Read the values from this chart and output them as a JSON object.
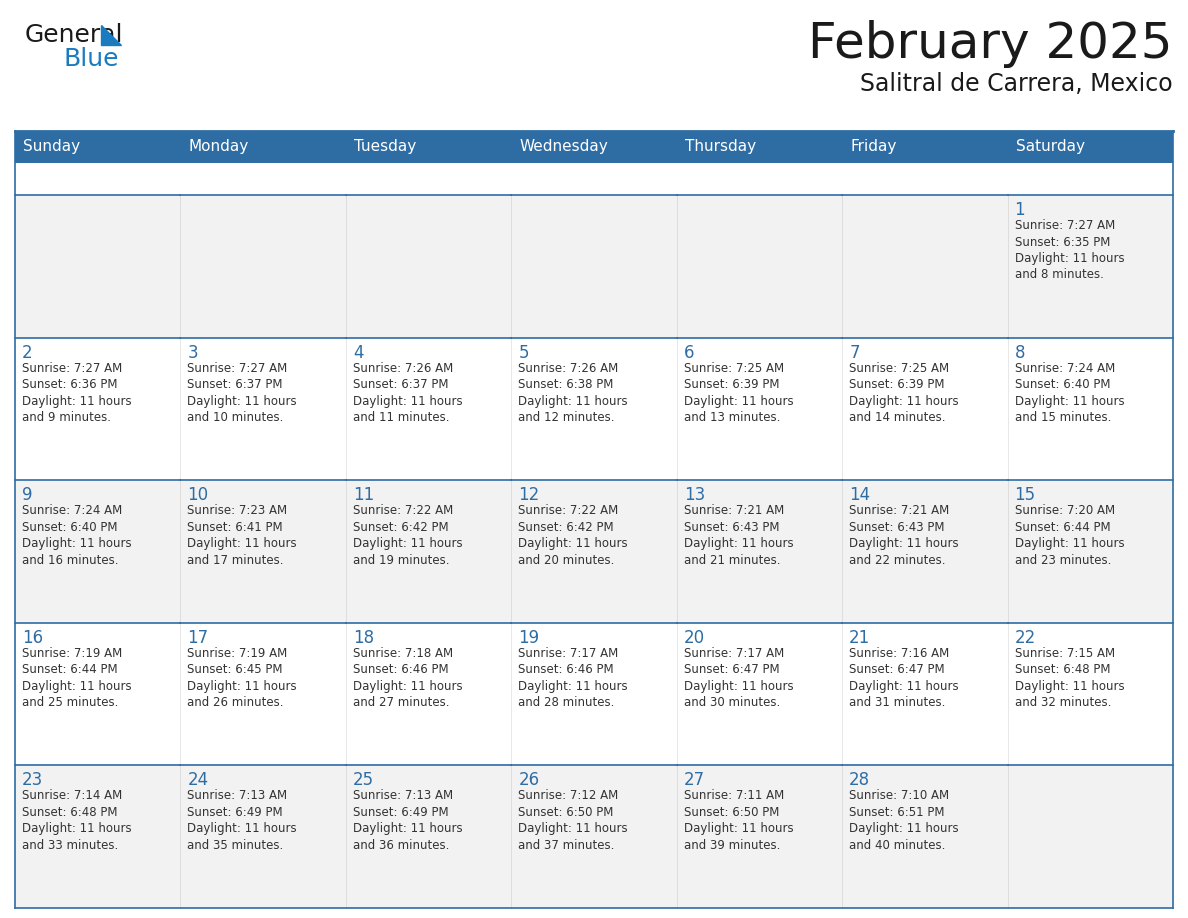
{
  "title": "February 2025",
  "subtitle": "Salitral de Carrera, Mexico",
  "header_bg": "#2e6da4",
  "header_text": "#ffffff",
  "cell_bg": "#ffffff",
  "cell_bg_alt": "#f2f2f2",
  "day_headers": [
    "Sunday",
    "Monday",
    "Tuesday",
    "Wednesday",
    "Thursday",
    "Friday",
    "Saturday"
  ],
  "title_color": "#1a1a1a",
  "subtitle_color": "#1a1a1a",
  "day_number_color": "#2e6da4",
  "info_color": "#333333",
  "grid_color": "#2e6da4",
  "logo_text_color": "#1a1a1a",
  "logo_blue_color": "#1a7bbf",
  "weeks": [
    [
      {
        "day": null,
        "info": ""
      },
      {
        "day": null,
        "info": ""
      },
      {
        "day": null,
        "info": ""
      },
      {
        "day": null,
        "info": ""
      },
      {
        "day": null,
        "info": ""
      },
      {
        "day": null,
        "info": ""
      },
      {
        "day": 1,
        "info": "Sunrise: 7:27 AM\nSunset: 6:35 PM\nDaylight: 11 hours\nand 8 minutes."
      }
    ],
    [
      {
        "day": 2,
        "info": "Sunrise: 7:27 AM\nSunset: 6:36 PM\nDaylight: 11 hours\nand 9 minutes."
      },
      {
        "day": 3,
        "info": "Sunrise: 7:27 AM\nSunset: 6:37 PM\nDaylight: 11 hours\nand 10 minutes."
      },
      {
        "day": 4,
        "info": "Sunrise: 7:26 AM\nSunset: 6:37 PM\nDaylight: 11 hours\nand 11 minutes."
      },
      {
        "day": 5,
        "info": "Sunrise: 7:26 AM\nSunset: 6:38 PM\nDaylight: 11 hours\nand 12 minutes."
      },
      {
        "day": 6,
        "info": "Sunrise: 7:25 AM\nSunset: 6:39 PM\nDaylight: 11 hours\nand 13 minutes."
      },
      {
        "day": 7,
        "info": "Sunrise: 7:25 AM\nSunset: 6:39 PM\nDaylight: 11 hours\nand 14 minutes."
      },
      {
        "day": 8,
        "info": "Sunrise: 7:24 AM\nSunset: 6:40 PM\nDaylight: 11 hours\nand 15 minutes."
      }
    ],
    [
      {
        "day": 9,
        "info": "Sunrise: 7:24 AM\nSunset: 6:40 PM\nDaylight: 11 hours\nand 16 minutes."
      },
      {
        "day": 10,
        "info": "Sunrise: 7:23 AM\nSunset: 6:41 PM\nDaylight: 11 hours\nand 17 minutes."
      },
      {
        "day": 11,
        "info": "Sunrise: 7:22 AM\nSunset: 6:42 PM\nDaylight: 11 hours\nand 19 minutes."
      },
      {
        "day": 12,
        "info": "Sunrise: 7:22 AM\nSunset: 6:42 PM\nDaylight: 11 hours\nand 20 minutes."
      },
      {
        "day": 13,
        "info": "Sunrise: 7:21 AM\nSunset: 6:43 PM\nDaylight: 11 hours\nand 21 minutes."
      },
      {
        "day": 14,
        "info": "Sunrise: 7:21 AM\nSunset: 6:43 PM\nDaylight: 11 hours\nand 22 minutes."
      },
      {
        "day": 15,
        "info": "Sunrise: 7:20 AM\nSunset: 6:44 PM\nDaylight: 11 hours\nand 23 minutes."
      }
    ],
    [
      {
        "day": 16,
        "info": "Sunrise: 7:19 AM\nSunset: 6:44 PM\nDaylight: 11 hours\nand 25 minutes."
      },
      {
        "day": 17,
        "info": "Sunrise: 7:19 AM\nSunset: 6:45 PM\nDaylight: 11 hours\nand 26 minutes."
      },
      {
        "day": 18,
        "info": "Sunrise: 7:18 AM\nSunset: 6:46 PM\nDaylight: 11 hours\nand 27 minutes."
      },
      {
        "day": 19,
        "info": "Sunrise: 7:17 AM\nSunset: 6:46 PM\nDaylight: 11 hours\nand 28 minutes."
      },
      {
        "day": 20,
        "info": "Sunrise: 7:17 AM\nSunset: 6:47 PM\nDaylight: 11 hours\nand 30 minutes."
      },
      {
        "day": 21,
        "info": "Sunrise: 7:16 AM\nSunset: 6:47 PM\nDaylight: 11 hours\nand 31 minutes."
      },
      {
        "day": 22,
        "info": "Sunrise: 7:15 AM\nSunset: 6:48 PM\nDaylight: 11 hours\nand 32 minutes."
      }
    ],
    [
      {
        "day": 23,
        "info": "Sunrise: 7:14 AM\nSunset: 6:48 PM\nDaylight: 11 hours\nand 33 minutes."
      },
      {
        "day": 24,
        "info": "Sunrise: 7:13 AM\nSunset: 6:49 PM\nDaylight: 11 hours\nand 35 minutes."
      },
      {
        "day": 25,
        "info": "Sunrise: 7:13 AM\nSunset: 6:49 PM\nDaylight: 11 hours\nand 36 minutes."
      },
      {
        "day": 26,
        "info": "Sunrise: 7:12 AM\nSunset: 6:50 PM\nDaylight: 11 hours\nand 37 minutes."
      },
      {
        "day": 27,
        "info": "Sunrise: 7:11 AM\nSunset: 6:50 PM\nDaylight: 11 hours\nand 39 minutes."
      },
      {
        "day": 28,
        "info": "Sunrise: 7:10 AM\nSunset: 6:51 PM\nDaylight: 11 hours\nand 40 minutes."
      },
      {
        "day": null,
        "info": ""
      }
    ]
  ]
}
